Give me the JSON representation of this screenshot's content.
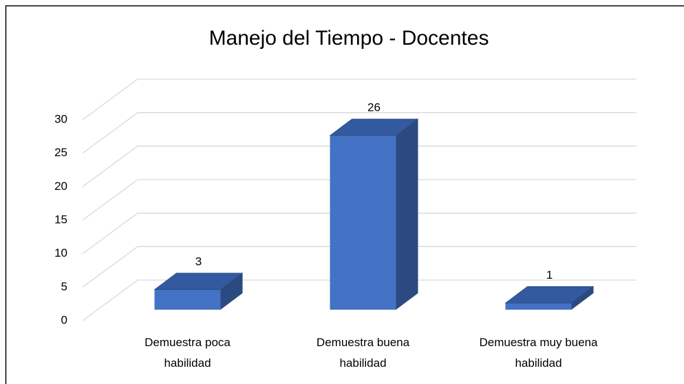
{
  "chart_data": {
    "type": "bar3d",
    "title": "Manejo del Tiempo - Docentes",
    "categories": [
      "Demuestra poca habilidad",
      "Demuestra buena habilidad",
      "Demuestra muy buena habilidad"
    ],
    "values": [
      3,
      26,
      1
    ],
    "color": "#4472c4",
    "ylim": [
      0,
      30
    ],
    "yticks": [
      0,
      5,
      10,
      15,
      20,
      25,
      30
    ],
    "grid": true
  }
}
